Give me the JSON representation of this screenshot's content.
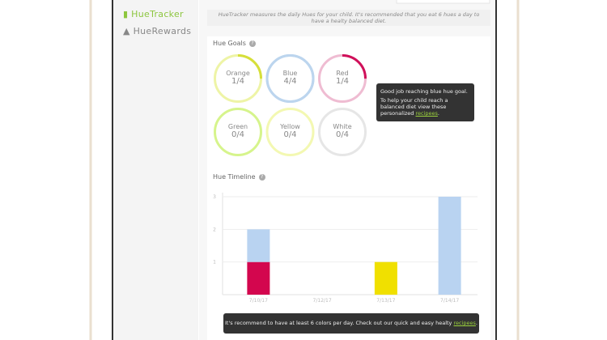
{
  "sidebar": {
    "items": [
      "HueTracker",
      "HueRewards"
    ]
  },
  "info": "HueTracker measures the daily Hues for your child. It's recommended that you eat 6 hues a day to have a healty balanced diet.",
  "goals": {
    "title": "Hue Goals",
    "help": "?",
    "items": [
      {
        "label": "Orange",
        "progress": "1/4",
        "ring": "#eef4a6",
        "arc": "#d6df3a"
      },
      {
        "label": "Blue",
        "progress": "4/4",
        "ring": "#bcd5ee",
        "arc": "#bcd5ee"
      },
      {
        "label": "Red",
        "progress": "1/4",
        "ring": "#efbcd2",
        "arc": "#d0105a"
      },
      {
        "label": "Green",
        "progress": "0/4",
        "ring": "#d6f48c",
        "arc": "#b8e04a"
      },
      {
        "label": "Yellow",
        "progress": "0/4",
        "ring": "#f3f8b2",
        "arc": "#e6ee50"
      },
      {
        "label": "White",
        "progress": "0/4",
        "ring": "#e6e6e6",
        "arc": "#cccccc"
      }
    ]
  },
  "tooltip": {
    "heading": "Good job reaching blue hue goal.",
    "text": "To help your child reach a balanced diet view these personalized",
    "link": "recipees",
    "end": "."
  },
  "chart_data": {
    "type": "stacked_bar",
    "title": "Hue Timeline",
    "help": "?",
    "categories": [
      "7/10/17",
      "7/12/17",
      "7/13/17",
      "7/14/17"
    ],
    "series": [
      {
        "color": "#d3064e",
        "values": [
          1,
          null,
          null,
          null
        ]
      },
      {
        "color": "#f0e000",
        "values": [
          null,
          null,
          1,
          null
        ]
      },
      {
        "color": "#b9d3f1",
        "values": [
          1,
          null,
          null,
          3
        ]
      }
    ],
    "ylim": [
      0,
      3
    ],
    "yticks": [
      1,
      2,
      3
    ],
    "grid": true
  },
  "toast": {
    "text": "It's recommend to have at least 6 colors per day. Check out our quick and easy healty",
    "link": "recipees",
    "end": "."
  }
}
